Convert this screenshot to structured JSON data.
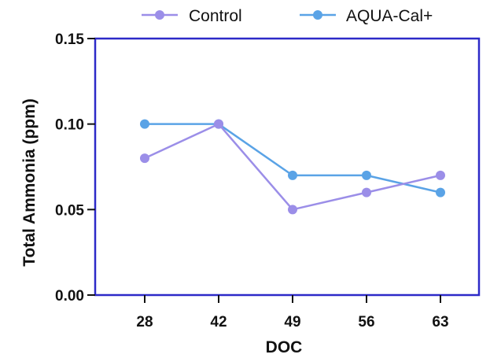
{
  "chart_data": {
    "type": "line",
    "xlabel": "DOC",
    "ylabel": "Total Ammonia  (ppm)",
    "categories": [
      "28",
      "42",
      "49",
      "56",
      "63"
    ],
    "ylim": [
      0,
      0.15
    ],
    "yticks": [
      "0.00",
      "0.05",
      "0.10",
      "0.15"
    ],
    "legend_position": "top",
    "grid": false,
    "series": [
      {
        "name": "Control",
        "color": "#9b8ee8",
        "values": [
          0.08,
          0.1,
          0.05,
          0.06,
          0.07
        ]
      },
      {
        "name": "AQUA-Cal+",
        "color": "#5aa3e6",
        "values": [
          0.1,
          0.1,
          0.07,
          0.07,
          0.06
        ]
      }
    ],
    "frame_color": "#2d2ac8"
  }
}
